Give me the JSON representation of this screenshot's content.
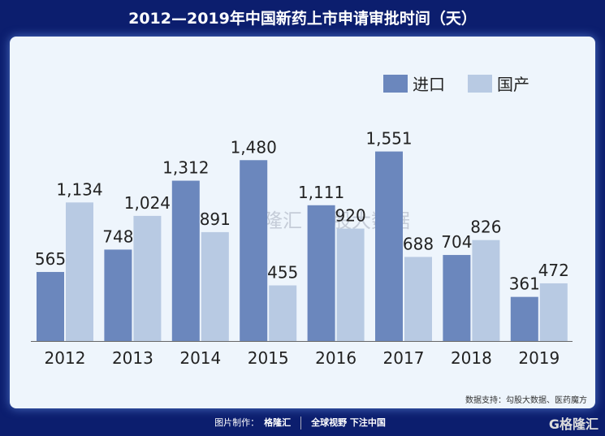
{
  "title": "2012—2019年中国新药上市申请审批时间（天）",
  "source": "数据支持：勾股大数据、医药魔方",
  "footer": {
    "made_by": "图片制作：",
    "brand": "格隆汇",
    "slogan": "全球视野 下注中国",
    "logo": "G格隆汇"
  },
  "watermark": {
    "left": "格隆汇",
    "right": "勾股大数据"
  },
  "colors": {
    "import": "#6b87bd",
    "domestic": "#b8cae3",
    "background": "#0c1e6e",
    "panel": "#eef5fc"
  },
  "chart_data": {
    "type": "bar",
    "title": "2012—2019年中国新药上市申请审批时间（天）",
    "categories": [
      "2012",
      "2013",
      "2014",
      "2015",
      "2016",
      "2017",
      "2018",
      "2019"
    ],
    "series": [
      {
        "name": "进口",
        "values": [
          565,
          748,
          1312,
          1480,
          1111,
          1551,
          704,
          361
        ],
        "labels": [
          "565",
          "748",
          "1,312",
          "1,480",
          "1,111",
          "1,551",
          "704",
          "361"
        ]
      },
      {
        "name": "国产",
        "values": [
          1134,
          1024,
          891,
          455,
          920,
          688,
          826,
          472
        ],
        "labels": [
          "1,134",
          "1,024",
          "891",
          "455",
          "920",
          "688",
          "826",
          "472"
        ]
      }
    ],
    "ylim": [
      0,
      1700
    ],
    "legend": "top-right",
    "grid": false
  }
}
